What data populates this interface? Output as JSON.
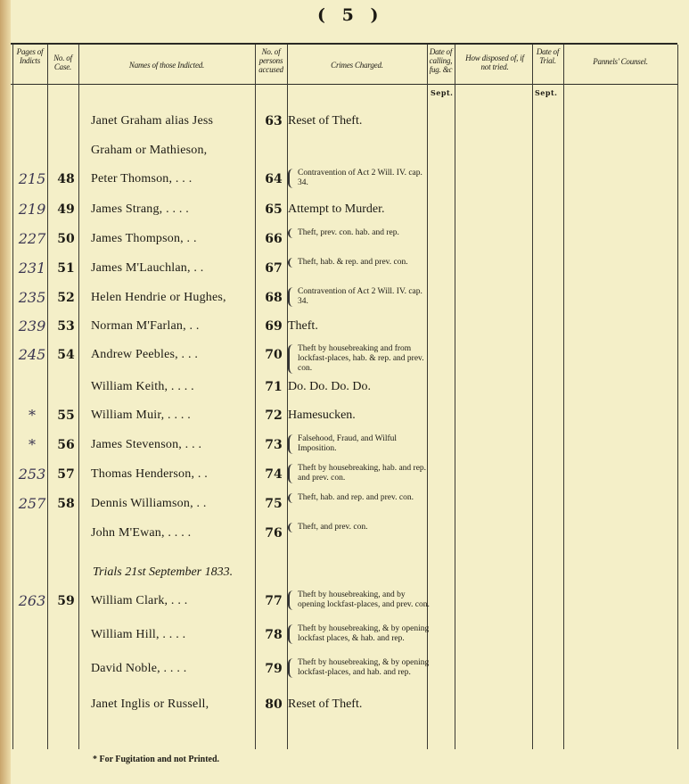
{
  "page_number": "( 5 )",
  "headers": {
    "pages": "Pages of Indicts",
    "case": "No. of Case.",
    "names": "Names of those Indicted.",
    "persons": "No. of persons accused",
    "crimes": "Crimes Charged.",
    "date_calling": "Date of calling, fug. &c",
    "disposed": "How disposed of, if not tried.",
    "date_trial": "Date of Trial.",
    "counsel": "Pannels' Counsel."
  },
  "month_calling": "Sept.",
  "month_trial": "Sept.",
  "rows": [
    {
      "ref": "",
      "case": "",
      "name": "Janet Graham alias Jess",
      "acc": "63",
      "crime": "Reset of Theft."
    },
    {
      "ref": "",
      "case": "",
      "name": "    Graham or Mathieson,",
      "acc": "",
      "crime": ""
    },
    {
      "ref": "215",
      "case": "48",
      "name": "Peter Thomson,    .   .   .",
      "acc": "64",
      "crime": "Contravention of Act 2 Will. IV. cap. 34."
    },
    {
      "ref": "219",
      "case": "49",
      "name": "James Strang,   .   .   .   .",
      "acc": "65",
      "crime": "Attempt to Murder."
    },
    {
      "ref": "227",
      "case": "50",
      "name": "James Thompson,   .   .",
      "acc": "66",
      "crime": "Theft, prev. con. hab. and rep."
    },
    {
      "ref": "231",
      "case": "51",
      "name": "James M'Lauchlan,   .   .",
      "acc": "67",
      "crime": "Theft, hab. & rep. and prev. con."
    },
    {
      "ref": "235",
      "case": "52",
      "name": "Helen Hendrie or Hughes,",
      "acc": "68",
      "crime": "Contravention of Act 2 Will. IV. cap. 34."
    },
    {
      "ref": "239",
      "case": "53",
      "name": "Norman M'Farlan,   .   .",
      "acc": "69",
      "crime": "Theft."
    },
    {
      "ref": "245",
      "case": "54",
      "name": "Andrew Peebles,   .   .   .",
      "acc": "70",
      "crime": "Theft by housebreaking and from lockfast-places, hab. & rep. and prev. con."
    },
    {
      "ref": "",
      "case": "",
      "name": "William Keith,   .   .   .   .",
      "acc": "71",
      "crime": "Do.    Do.    Do.    Do."
    },
    {
      "ref": "*",
      "case": "55",
      "name": "William Muir,   .   .   .   .",
      "acc": "72",
      "crime": "Hamesucken."
    },
    {
      "ref": "*",
      "case": "56",
      "name": "James Stevenson,   .   .   .",
      "acc": "73",
      "crime": "Falsehood, Fraud, and Wilful Imposition."
    },
    {
      "ref": "253",
      "case": "57",
      "name": "Thomas Henderson,   .   .",
      "acc": "74",
      "crime": "Theft by housebreaking, hab. and rep. and prev. con."
    },
    {
      "ref": "257",
      "case": "58",
      "name": "Dennis Williamson,   .   .",
      "acc": "75",
      "crime": "Theft, hab. and rep. and prev. con."
    },
    {
      "ref": "",
      "case": "",
      "name": "John M'Ewan,   .   .   .   .",
      "acc": "76",
      "crime": "Theft, and prev. con."
    },
    {
      "trials": "Trials 21st September 1833."
    },
    {
      "ref": "263",
      "case": "59",
      "name": "William Clark,   .   .   .",
      "acc": "77",
      "crime": "Theft by housebreaking, and by opening lockfast-places, and prev. con."
    },
    {
      "ref": "",
      "case": "",
      "name": "William Hill,   .   .   .   .",
      "acc": "78",
      "crime": "Theft by housebreaking, & by opening lockfast places, & hab. and rep."
    },
    {
      "ref": "",
      "case": "",
      "name": "David Noble,   .   .   .   .",
      "acc": "79",
      "crime": "Theft by housebreaking, & by opening lockfast-places, and hab. and rep."
    },
    {
      "ref": "",
      "case": "",
      "name": "Janet Inglis or Russell,",
      "acc": "80",
      "crime": "Reset of Theft."
    }
  ],
  "footnote": "* For Fugitation and not Printed."
}
